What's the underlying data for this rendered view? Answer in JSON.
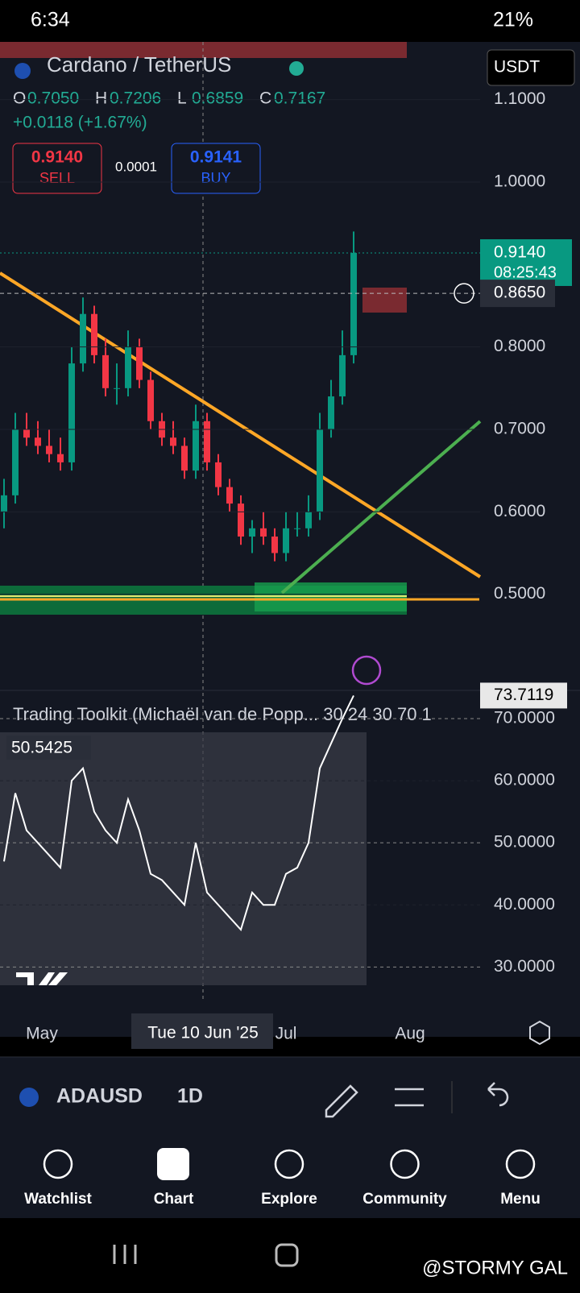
{
  "status_bar": {
    "time": "6:34",
    "battery": "21%"
  },
  "header": {
    "symbol": "Cardano / TetherUS",
    "ohlc": [
      {
        "key": "O",
        "value": "0.7050"
      },
      {
        "key": "H",
        "value": "0.7206"
      },
      {
        "key": "L",
        "value": "0.6859"
      },
      {
        "key": "C",
        "value": "0.7167"
      }
    ],
    "change": "+0.0118 (+1.67%)",
    "sell": {
      "price": "0.9140",
      "label": "SELL"
    },
    "spread": "0.0001",
    "buy": {
      "price": "0.9141",
      "label": "BUY"
    },
    "currency": "USDT"
  },
  "price_chart": {
    "type": "candlestick",
    "ylim": [
      0.4,
      1.17
    ],
    "yticks": [
      {
        "value": 0.5,
        "label": "0.5000"
      },
      {
        "value": 0.6,
        "label": "0.6000"
      },
      {
        "value": 0.7,
        "label": "0.7000"
      },
      {
        "value": 0.8,
        "label": "0.8000"
      },
      {
        "value": 1.0,
        "label": "1.0000"
      },
      {
        "value": 1.1,
        "label": "1.1000"
      }
    ],
    "open": [
      0.6,
      0.62,
      0.7,
      0.69,
      0.68,
      0.67,
      0.66,
      0.78,
      0.84,
      0.79,
      0.75,
      0.75,
      0.8,
      0.76,
      0.71,
      0.69,
      0.68,
      0.65,
      0.71,
      0.66,
      0.63,
      0.61,
      0.57,
      0.58,
      0.57,
      0.55,
      0.58,
      0.58,
      0.6,
      0.7,
      0.74,
      0.79
    ],
    "high": [
      0.64,
      0.72,
      0.72,
      0.71,
      0.7,
      0.69,
      0.8,
      0.86,
      0.85,
      0.81,
      0.78,
      0.82,
      0.81,
      0.77,
      0.72,
      0.71,
      0.69,
      0.73,
      0.72,
      0.67,
      0.64,
      0.62,
      0.59,
      0.6,
      0.58,
      0.6,
      0.6,
      0.62,
      0.72,
      0.76,
      0.82,
      0.94
    ],
    "low": [
      0.58,
      0.61,
      0.68,
      0.67,
      0.66,
      0.65,
      0.65,
      0.77,
      0.78,
      0.74,
      0.73,
      0.74,
      0.75,
      0.7,
      0.68,
      0.67,
      0.64,
      0.64,
      0.65,
      0.62,
      0.6,
      0.56,
      0.55,
      0.56,
      0.54,
      0.54,
      0.57,
      0.57,
      0.59,
      0.69,
      0.73,
      0.78
    ],
    "close": [
      0.62,
      0.7,
      0.69,
      0.68,
      0.67,
      0.66,
      0.78,
      0.84,
      0.79,
      0.75,
      0.75,
      0.8,
      0.76,
      0.71,
      0.69,
      0.68,
      0.65,
      0.71,
      0.66,
      0.63,
      0.61,
      0.57,
      0.58,
      0.57,
      0.55,
      0.58,
      0.58,
      0.6,
      0.7,
      0.74,
      0.79,
      0.914
    ],
    "last_price": {
      "value": 0.914,
      "label": "0.9140",
      "countdown": "08:25:43"
    },
    "crosshair_price": {
      "value": 0.865,
      "label": "0.8650"
    }
  },
  "indicator": {
    "type": "line",
    "title": "Trading Toolkit (Michaël van de Popp... 30 24 30 70 1",
    "ylim": [
      25.5,
      76.1
    ],
    "yticks": [
      {
        "value": 30,
        "label": "30.0000"
      },
      {
        "value": 40,
        "label": "40.0000"
      },
      {
        "value": 50,
        "label": "50.0000"
      },
      {
        "value": 60,
        "label": "60.0000"
      },
      {
        "value": 70,
        "label": "70.0000"
      }
    ],
    "values": [
      47,
      58,
      52,
      50,
      48,
      46,
      60,
      62,
      55,
      52,
      50,
      57,
      52,
      45,
      44,
      42,
      40,
      50,
      42,
      40,
      38,
      36,
      42,
      40,
      40,
      45,
      46,
      50,
      62,
      66,
      70,
      73.7119
    ],
    "value_labels": [
      null,
      null,
      null,
      null,
      null,
      null,
      null,
      null,
      null,
      null,
      null,
      null,
      null,
      null,
      null,
      null,
      null,
      null,
      null,
      null,
      null,
      null,
      null,
      null,
      null,
      null,
      null,
      null,
      null,
      null,
      null,
      "73.7119"
    ],
    "crosshair_value": "50.5425"
  },
  "x_axis": [
    "May",
    "Tue 10 Jun '25",
    "Jul",
    "Aug"
  ],
  "toolbar": {
    "symbol": "ADAUSD",
    "interval": "1D"
  },
  "nav": [
    "Watchlist",
    "Chart",
    "Explore",
    "Community",
    "Menu"
  ],
  "watermark": "@STORMY GAL"
}
